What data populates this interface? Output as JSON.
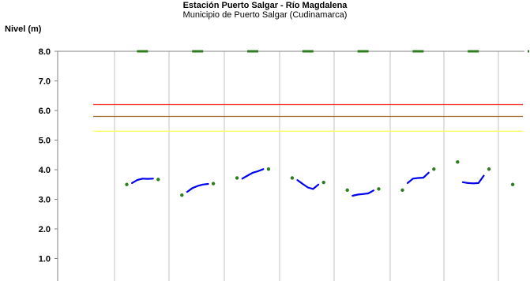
{
  "chart_data": {
    "type": "line",
    "title": "Estación Puerto Salgar - Río Magdalena",
    "subtitle": "Municipio de Puerto Salgar (Cudinamarca)",
    "ylabel": "Nivel (m)",
    "xlabel": "",
    "ylim": [
      0,
      8.0
    ],
    "yticks": [
      "8.0",
      "7.0",
      "6.0",
      "5.0",
      "4.0",
      "3.0",
      "2.0",
      "1.0"
    ],
    "grid": "vertical",
    "threshold_lines": [
      {
        "value": 6.2,
        "color": "#ff2a2a"
      },
      {
        "value": 5.8,
        "color": "#a06a2c"
      },
      {
        "value": 5.3,
        "color": "#ffff55"
      }
    ],
    "periods": [
      {
        "points": [
          3.5,
          3.55,
          3.65,
          3.7,
          3.69,
          3.7,
          3.67
        ],
        "marker_top": 8.0
      },
      {
        "points": [
          3.14,
          3.25,
          3.38,
          3.45,
          3.5,
          3.52,
          3.53
        ],
        "marker_top": 8.0
      },
      {
        "points": [
          3.72,
          3.7,
          3.8,
          3.9,
          3.95,
          4.02,
          4.02
        ],
        "marker_top": 8.0
      },
      {
        "points": [
          3.72,
          3.65,
          3.52,
          3.4,
          3.35,
          3.5,
          3.57
        ],
        "marker_top": 8.0
      },
      {
        "points": [
          3.31,
          3.12,
          3.16,
          3.18,
          3.2,
          3.3,
          3.35
        ],
        "marker_top": 8.0
      },
      {
        "points": [
          3.31,
          3.55,
          3.7,
          3.72,
          3.73,
          3.9,
          4.02
        ],
        "marker_top": 8.0
      },
      {
        "points": [
          4.26,
          3.58,
          3.55,
          3.54,
          3.55,
          3.8,
          4.02
        ],
        "marker_top": 8.0
      },
      {
        "points": [
          3.5
        ],
        "marker_top": 8.0
      }
    ],
    "colors": {
      "line": "#0000ee",
      "marker": "#2e7d1e",
      "grid": "#c0c0c0",
      "axis": "#808080"
    }
  }
}
